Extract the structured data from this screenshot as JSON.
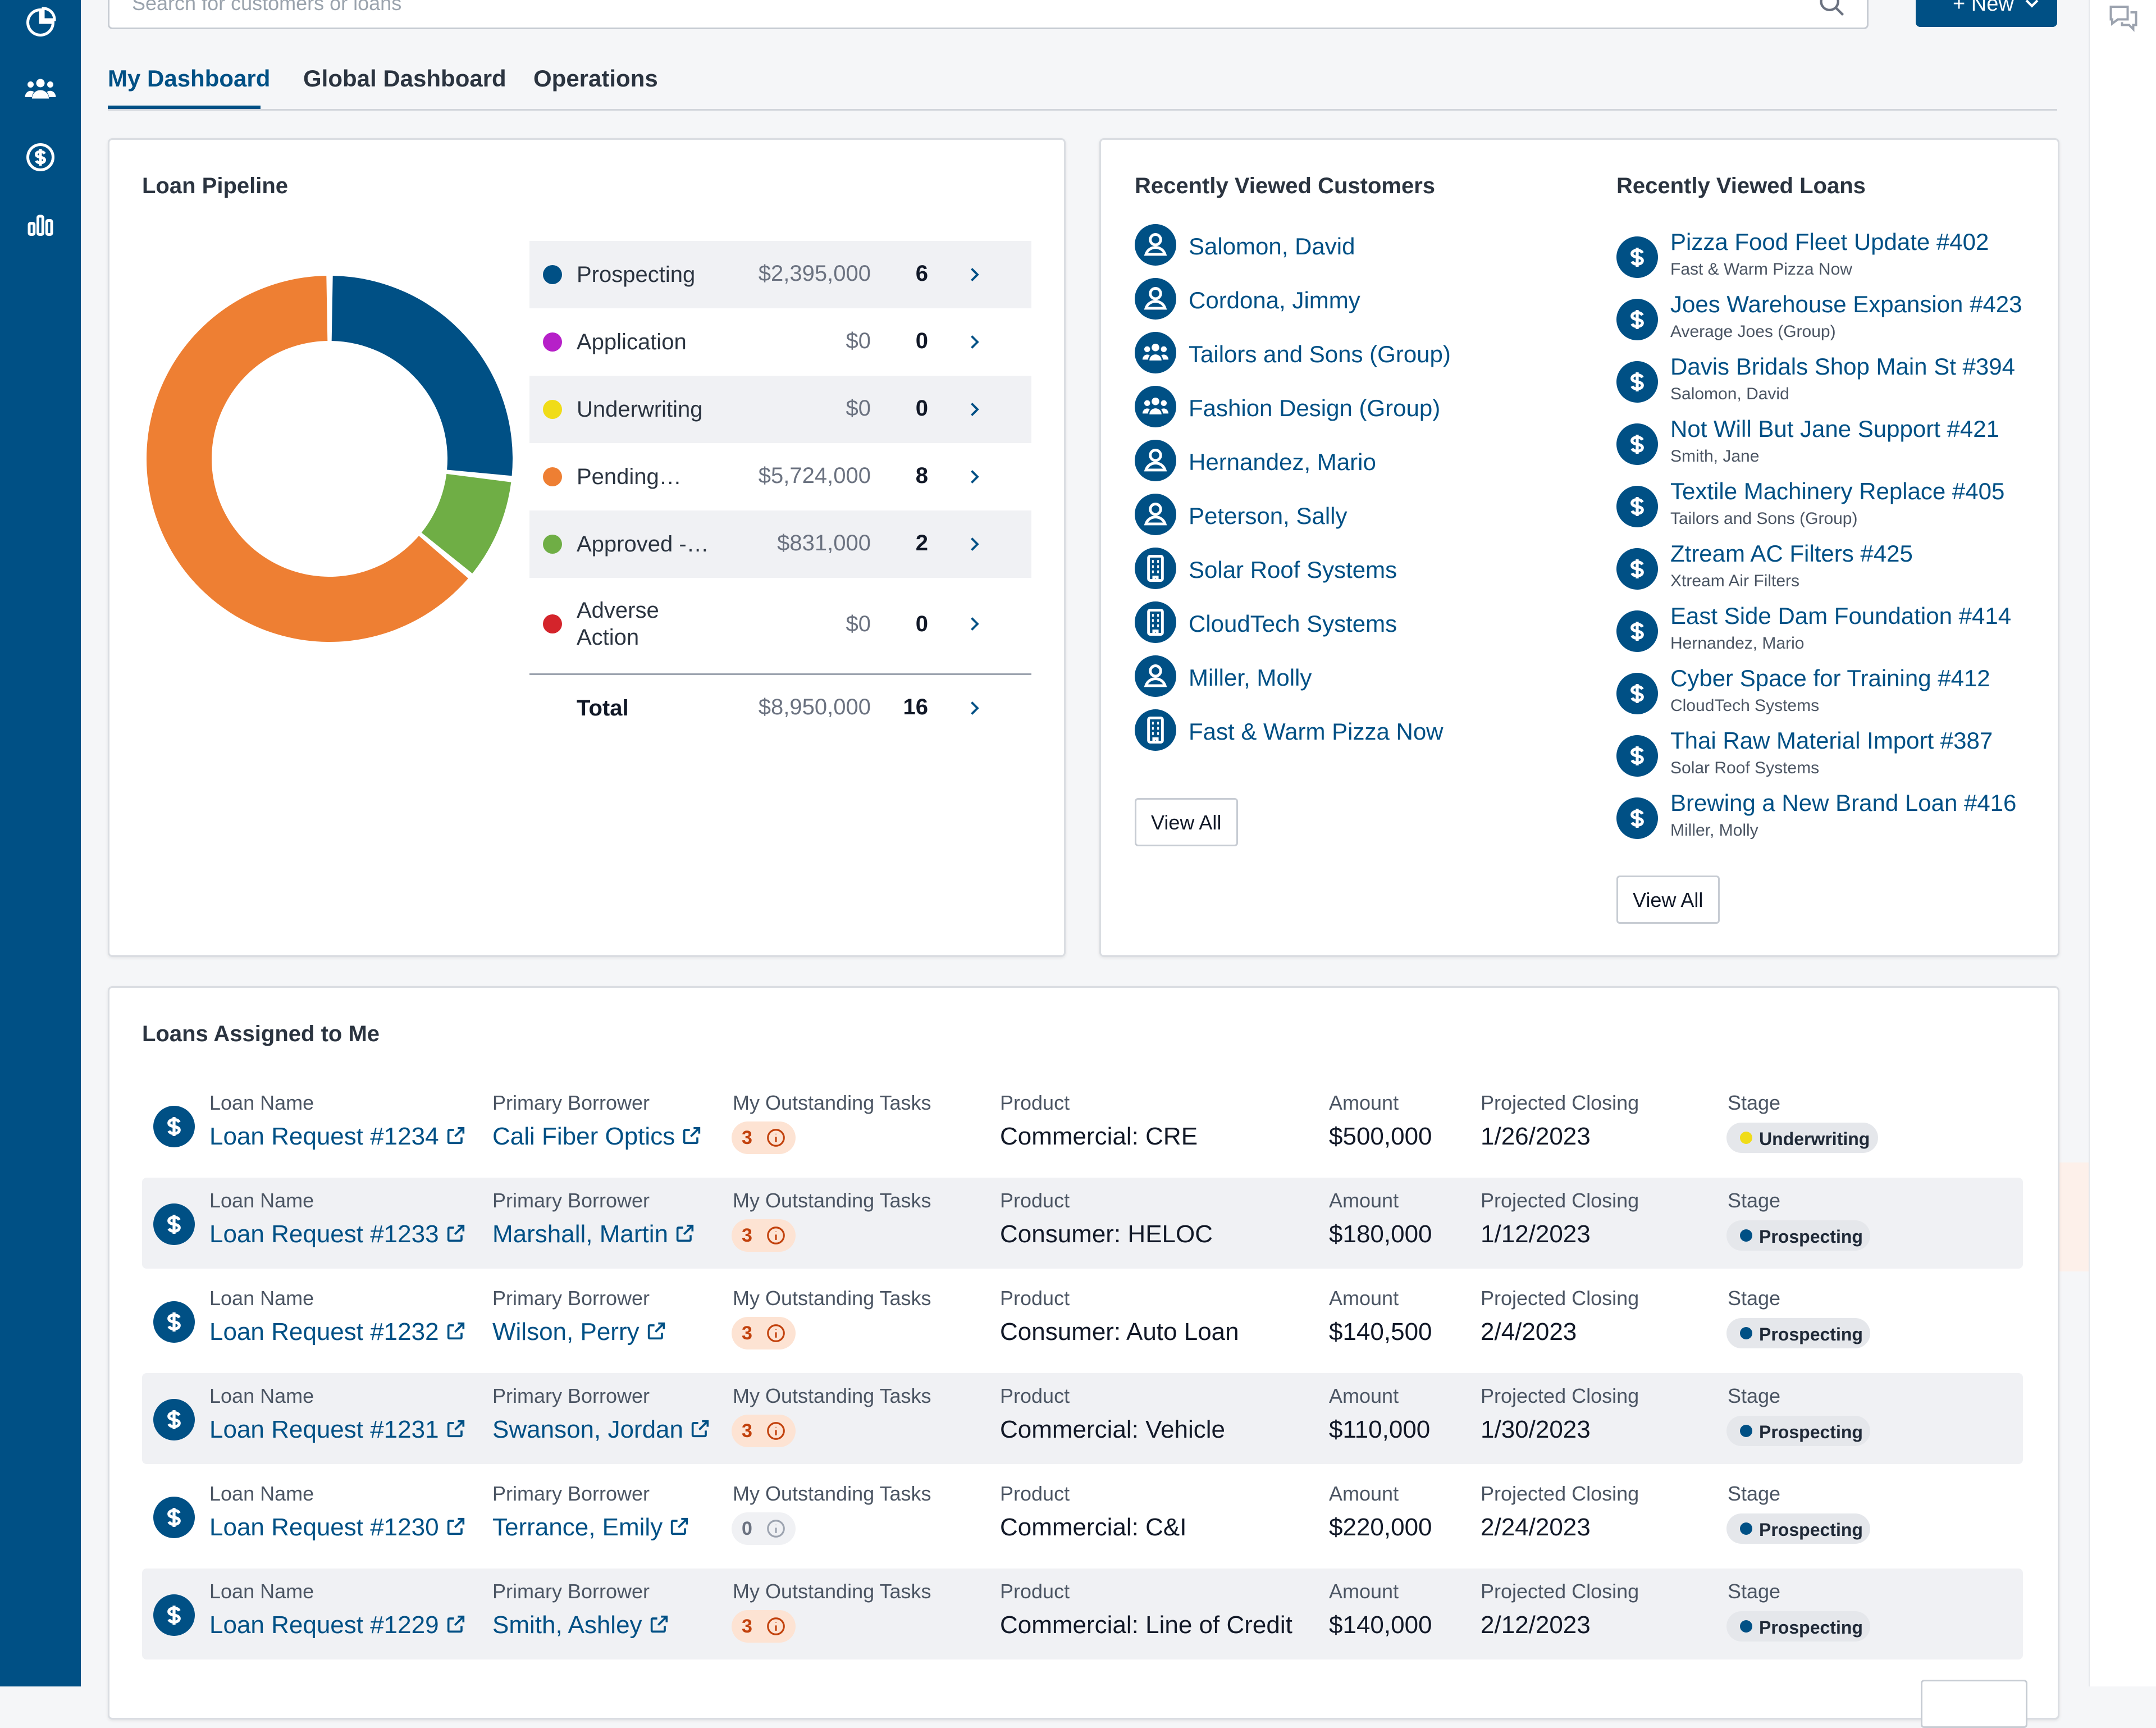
{
  "search": {
    "placeholder": "Search for customers or loans"
  },
  "header": {
    "new_label": "+ New"
  },
  "tabs": [
    {
      "label": "My Dashboard",
      "active": true
    },
    {
      "label": "Global Dashboard",
      "active": false
    },
    {
      "label": "Operations",
      "active": false
    }
  ],
  "sidebar": {
    "icons": [
      "dashboard-icon",
      "customers-icon",
      "loans-icon",
      "reports-icon"
    ]
  },
  "pipeline": {
    "title": "Loan Pipeline",
    "stages": [
      {
        "label": "Prospecting",
        "amount": "$2,395,000",
        "count": "6",
        "color": "#005085"
      },
      {
        "label": "Application",
        "amount": "$0",
        "count": "0",
        "color": "#b620c8"
      },
      {
        "label": "Underwriting",
        "amount": "$0",
        "count": "0",
        "color": "#f0dc18"
      },
      {
        "label": "Pending…",
        "amount": "$5,724,000",
        "count": "8",
        "color": "#ee7f33"
      },
      {
        "label": "Approved -…",
        "amount": "$831,000",
        "count": "2",
        "color": "#6fae45"
      },
      {
        "label": "Adverse Action",
        "amount": "$0",
        "count": "0",
        "color": "#d4242b"
      }
    ],
    "total": {
      "label": "Total",
      "amount": "$8,950,000",
      "count": "16"
    }
  },
  "recent_customers": {
    "title": "Recently Viewed Customers",
    "items": [
      {
        "name": "Salomon, David",
        "type": "person"
      },
      {
        "name": "Cordona, Jimmy",
        "type": "person"
      },
      {
        "name": "Tailors and Sons (Group)",
        "type": "group"
      },
      {
        "name": "Fashion Design (Group)",
        "type": "group"
      },
      {
        "name": "Hernandez, Mario",
        "type": "person"
      },
      {
        "name": "Peterson, Sally",
        "type": "person"
      },
      {
        "name": "Solar Roof Systems",
        "type": "business"
      },
      {
        "name": "CloudTech Systems",
        "type": "business"
      },
      {
        "name": "Miller, Molly",
        "type": "person"
      },
      {
        "name": "Fast & Warm Pizza Now",
        "type": "business"
      }
    ],
    "view_all": "View All"
  },
  "recent_loans": {
    "title": "Recently Viewed Loans",
    "items": [
      {
        "name": "Pizza Food Fleet Update #402",
        "customer": "Fast & Warm Pizza Now"
      },
      {
        "name": "Joes Warehouse Expansion #423",
        "customer": "Average Joes (Group)"
      },
      {
        "name": "Davis Bridals Shop Main St #394",
        "customer": "Salomon, David"
      },
      {
        "name": "Not Will But Jane Support #421",
        "customer": "Smith, Jane"
      },
      {
        "name": "Textile  Machinery Replace #405",
        "customer": "Tailors and Sons (Group)"
      },
      {
        "name": "Ztream AC Filters #425",
        "customer": "Xtream Air Filters"
      },
      {
        "name": "East Side Dam Foundation #414",
        "customer": "Hernandez, Mario"
      },
      {
        "name": "Cyber Space for Training #412",
        "customer": "CloudTech Systems"
      },
      {
        "name": "Thai Raw Material Import #387",
        "customer": "Solar Roof Systems"
      },
      {
        "name": "Brewing a New Brand Loan #416",
        "customer": "Miller, Molly"
      }
    ],
    "view_all": "View All"
  },
  "assigned": {
    "title": "Loans Assigned to Me",
    "headers": {
      "loan_name": "Loan Name",
      "borrower": "Primary Borrower",
      "tasks": "My Outstanding Tasks",
      "product": "Product",
      "amount": "Amount",
      "closing": "Projected Closing",
      "stage": "Stage"
    },
    "rows": [
      {
        "loan": "Loan Request #1234",
        "borrower": "Cali Fiber Optics",
        "tasks": "3",
        "product": "Commercial: CRE",
        "amount": "$500,000",
        "closing": "1/26/2023",
        "stage": "Underwriting",
        "stage_color": "#f0dc18"
      },
      {
        "loan": "Loan Request #1233",
        "borrower": "Marshall, Martin",
        "tasks": "3",
        "product": "Consumer: HELOC",
        "amount": "$180,000",
        "closing": "1/12/2023",
        "stage": "Prospecting",
        "stage_color": "#005085"
      },
      {
        "loan": "Loan Request #1232",
        "borrower": "Wilson, Perry",
        "tasks": "3",
        "product": "Consumer: Auto Loan",
        "amount": "$140,500",
        "closing": "2/4/2023",
        "stage": "Prospecting",
        "stage_color": "#005085"
      },
      {
        "loan": "Loan Request #1231",
        "borrower": "Swanson, Jordan",
        "tasks": "3",
        "product": "Commercial: Vehicle",
        "amount": "$110,000",
        "closing": "1/30/2023",
        "stage": "Prospecting",
        "stage_color": "#005085"
      },
      {
        "loan": "Loan Request #1230",
        "borrower": "Terrance, Emily",
        "tasks": "0",
        "product": "Commercial: C&I",
        "amount": "$220,000",
        "closing": "2/24/2023",
        "stage": "Prospecting",
        "stage_color": "#005085"
      },
      {
        "loan": "Loan Request #1229",
        "borrower": "Smith, Ashley",
        "tasks": "3",
        "product": "Commercial: Line of Credit",
        "amount": "$140,000",
        "closing": "2/12/2023",
        "stage": "Prospecting",
        "stage_color": "#005085"
      }
    ]
  }
}
